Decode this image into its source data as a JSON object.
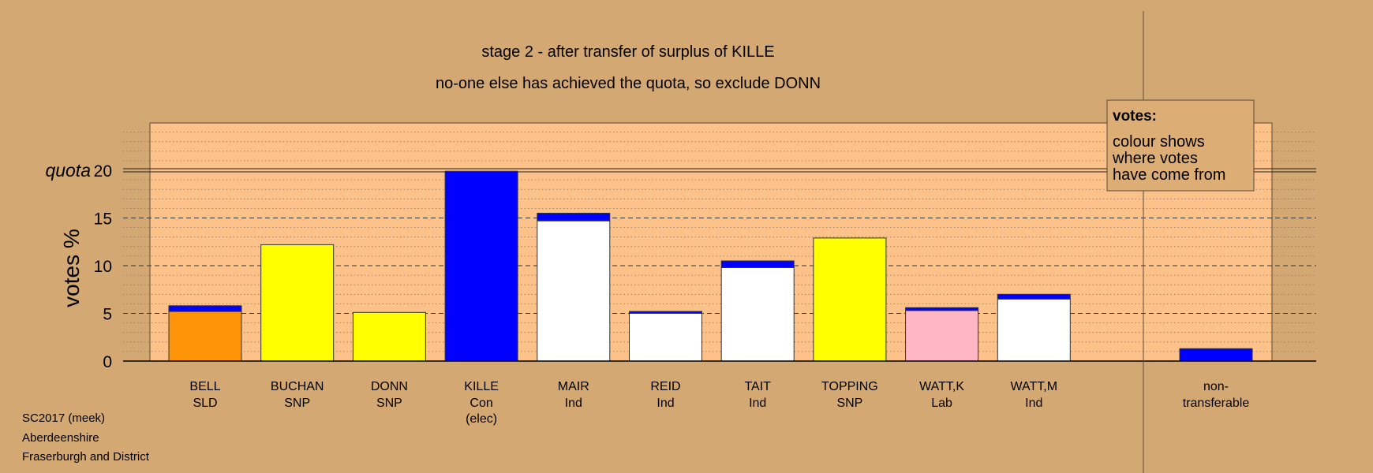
{
  "chart_data": {
    "type": "bar",
    "title": "stage 2 - after transfer of surplus of KILLE",
    "subtitle": "no-one else has achieved the quota, so exclude DONN",
    "ylabel": "votes %",
    "quota_label": "quota",
    "quota_value": 20,
    "ylim": [
      0,
      25
    ],
    "yticks": [
      0,
      5,
      10,
      15,
      20
    ],
    "legend": {
      "title": "votes:",
      "lines": [
        "colour shows",
        "where votes",
        "have come from"
      ],
      "placement": "top-right"
    },
    "candidates": [
      {
        "name": "BELL",
        "party": "SLD",
        "note": "",
        "base": 5.2,
        "transfer": 0.6,
        "color": "#ff9408"
      },
      {
        "name": "BUCHAN",
        "party": "SNP",
        "note": "",
        "base": 12.2,
        "transfer": 0.0,
        "color": "#ffff00"
      },
      {
        "name": "DONN",
        "party": "SNP",
        "note": "",
        "base": 5.1,
        "transfer": 0.0,
        "color": "#ffff00"
      },
      {
        "name": "KILLE",
        "party": "Con",
        "note": "(elec)",
        "base": 0.0,
        "transfer": 19.9,
        "color": "#0000ff"
      },
      {
        "name": "MAIR",
        "party": "Ind",
        "note": "",
        "base": 14.7,
        "transfer": 0.8,
        "color": "#ffffff"
      },
      {
        "name": "REID",
        "party": "Ind",
        "note": "",
        "base": 5.0,
        "transfer": 0.2,
        "color": "#ffffff"
      },
      {
        "name": "TAIT",
        "party": "Ind",
        "note": "",
        "base": 9.8,
        "transfer": 0.7,
        "color": "#ffffff"
      },
      {
        "name": "TOPPING",
        "party": "SNP",
        "note": "",
        "base": 12.9,
        "transfer": 0.0,
        "color": "#ffff00"
      },
      {
        "name": "WATT,K",
        "party": "Lab",
        "note": "",
        "base": 5.3,
        "transfer": 0.3,
        "color": "#ffb6c5"
      },
      {
        "name": "WATT,M",
        "party": "Ind",
        "note": "",
        "base": 6.5,
        "transfer": 0.5,
        "color": "#ffffff"
      }
    ],
    "nontransferable": {
      "line1": "non-",
      "line2": "transferable",
      "value": 1.3,
      "color": "#0000ff"
    },
    "transfer_color": "#0000ff",
    "grid": true
  },
  "footer": {
    "line1": "SC2017 (meek)",
    "line2": "Aberdeenshire",
    "line3": "Fraserburgh and District"
  }
}
